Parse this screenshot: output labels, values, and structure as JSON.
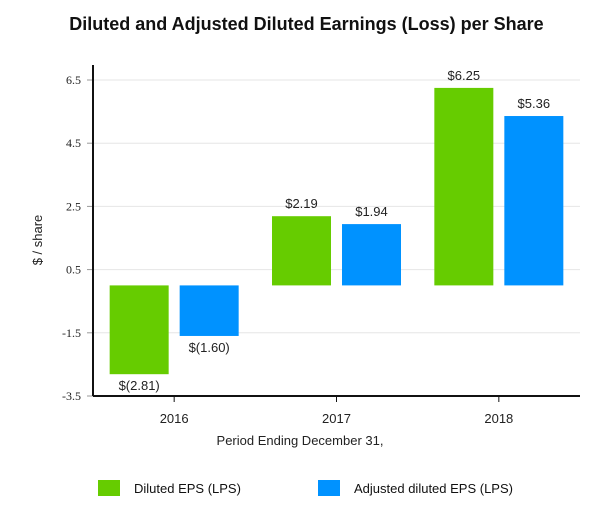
{
  "chart_data": {
    "type": "bar",
    "title": "Diluted and Adjusted Diluted Earnings (Loss) per Share",
    "xlabel": "Period Ending December 31,",
    "ylabel": "$ / share",
    "categories": [
      "2016",
      "2017",
      "2018"
    ],
    "series": [
      {
        "name": "Diluted EPS (LPS)",
        "color": "#66cc00",
        "values": [
          -2.81,
          2.19,
          6.25
        ],
        "labels": [
          "$(2.81)",
          "$2.19",
          "$6.25"
        ]
      },
      {
        "name": "Adjusted diluted EPS (LPS)",
        "color": "#0092ff",
        "values": [
          -1.6,
          1.94,
          5.36
        ],
        "labels": [
          "$(1.60)",
          "$1.94",
          "$5.36"
        ]
      }
    ],
    "ylim": [
      -3.5,
      6.5
    ],
    "yticks": [
      "6.5",
      "4.5",
      "2.5",
      "0.5",
      "-1.5",
      "-3.5"
    ],
    "grid": true,
    "legend": "bottom"
  }
}
